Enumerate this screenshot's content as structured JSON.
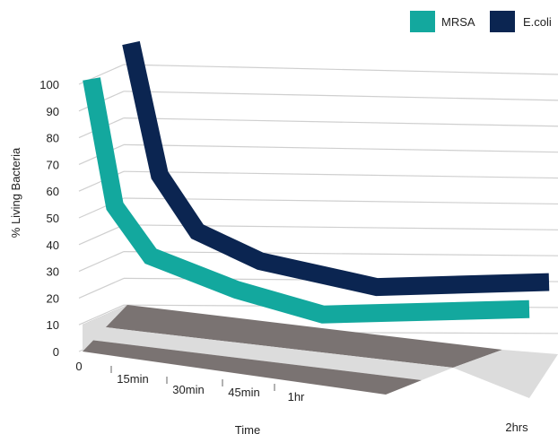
{
  "chart_data": {
    "type": "line",
    "title": "",
    "xlabel": "Time",
    "ylabel": "% Living Bacteria",
    "categories": [
      "0",
      "15min",
      "30min",
      "45min",
      "1hr",
      "2hrs"
    ],
    "y_ticks": [
      "0",
      "10",
      "20",
      "30",
      "40",
      "50",
      "60",
      "70",
      "80",
      "90",
      "100"
    ],
    "ylim": [
      0,
      100
    ],
    "grid": true,
    "legend_position": "top-right",
    "series": [
      {
        "name": "MRSA",
        "color": "#13a89e",
        "values": [
          100,
          52,
          32,
          18,
          7,
          5
        ]
      },
      {
        "name": "E.coli",
        "color": "#0b2551",
        "values": [
          100,
          53,
          32,
          20,
          8,
          6
        ]
      }
    ],
    "floor_colors": [
      "#7a7372",
      "#dcdcdc"
    ]
  }
}
